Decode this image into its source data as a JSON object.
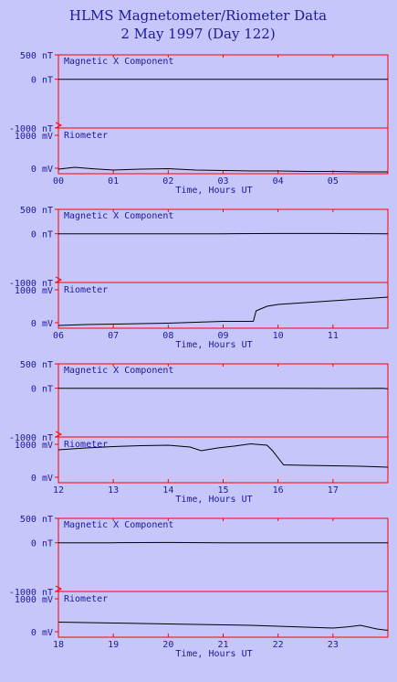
{
  "title": "HLMS Magnetometer/Riometer Data",
  "subtitle": "2 May 1997 (Day 122)",
  "colors": {
    "background": "#c6c6fb",
    "frame": "#ff0000",
    "text": "#1b1b9a",
    "trace": "#000000"
  },
  "chart_data": [
    {
      "type": "line",
      "x_label": "Time, Hours UT",
      "x_ticks": [
        "00",
        "01",
        "02",
        "03",
        "04",
        "05"
      ],
      "xlim": [
        0,
        6
      ],
      "mag": {
        "label": "Magnetic X Component",
        "unit": "nT",
        "y_tick_labels": [
          "500 nT",
          "0 nT",
          "-1000 nT"
        ],
        "ylim": [
          -1000,
          500
        ],
        "x": [
          0,
          1,
          2,
          3,
          4,
          5,
          6
        ],
        "y": [
          0,
          0,
          0,
          0,
          0,
          0,
          0
        ]
      },
      "rio": {
        "label": "Riometer",
        "unit": "mV",
        "y_tick_labels": [
          "1000 mV",
          "0 mV"
        ],
        "ylim": [
          0,
          1000
        ],
        "x": [
          0,
          0.3,
          0.6,
          1,
          1.5,
          2,
          2.5,
          3,
          3.5,
          4,
          4.5,
          5,
          5.5,
          6
        ],
        "y": [
          100,
          140,
          110,
          80,
          100,
          110,
          80,
          70,
          60,
          60,
          50,
          50,
          40,
          40
        ]
      }
    },
    {
      "type": "line",
      "x_label": "Time, Hours UT",
      "x_ticks": [
        "06",
        "07",
        "08",
        "09",
        "10",
        "11"
      ],
      "xlim": [
        6,
        12
      ],
      "mag": {
        "label": "Magnetic X Component",
        "unit": "nT",
        "y_tick_labels": [
          "500 nT",
          "0 nT",
          "-1000 nT"
        ],
        "ylim": [
          -1000,
          500
        ],
        "x": [
          6,
          7,
          8,
          9,
          10,
          11,
          12
        ],
        "y": [
          0,
          0,
          0,
          0,
          5,
          5,
          0
        ]
      },
      "rio": {
        "label": "Riometer",
        "unit": "mV",
        "y_tick_labels": [
          "1000 mV",
          "0 mV"
        ],
        "ylim": [
          0,
          1000
        ],
        "x": [
          6,
          6.5,
          7,
          7.5,
          8,
          8.5,
          9,
          9.55,
          9.6,
          9.8,
          10,
          10.5,
          11,
          11.5,
          12
        ],
        "y": [
          60,
          80,
          90,
          100,
          110,
          130,
          150,
          150,
          380,
          480,
          520,
          560,
          600,
          640,
          680
        ]
      }
    },
    {
      "type": "line",
      "x_label": "Time, Hours UT",
      "x_ticks": [
        "12",
        "13",
        "14",
        "15",
        "16",
        "17"
      ],
      "xlim": [
        12,
        18
      ],
      "mag": {
        "label": "Magnetic X Component",
        "unit": "nT",
        "y_tick_labels": [
          "500 nT",
          "0 nT",
          "-1000 nT"
        ],
        "ylim": [
          -1000,
          500
        ],
        "x": [
          12,
          13,
          14,
          15,
          16,
          17,
          17.9,
          18
        ],
        "y": [
          0,
          0,
          0,
          0,
          0,
          -5,
          0,
          -10
        ]
      },
      "rio": {
        "label": "Riometer",
        "unit": "mV",
        "y_tick_labels": [
          "1000 mV",
          "0 mV"
        ],
        "ylim": [
          0,
          1000
        ],
        "x": [
          12,
          12.5,
          13,
          13.5,
          14,
          14.4,
          14.6,
          14.9,
          15.2,
          15.5,
          15.8,
          15.9,
          16.1,
          16.5,
          17,
          17.5,
          18
        ],
        "y": [
          720,
          760,
          790,
          810,
          820,
          780,
          700,
          760,
          800,
          850,
          820,
          700,
          390,
          380,
          370,
          360,
          340
        ]
      }
    },
    {
      "type": "line",
      "x_label": "Time, Hours UT",
      "x_ticks": [
        "18",
        "19",
        "20",
        "21",
        "22",
        "23"
      ],
      "xlim": [
        18,
        24
      ],
      "mag": {
        "label": "Magnetic X Component",
        "unit": "nT",
        "y_tick_labels": [
          "500 nT",
          "0 nT",
          "-1000 nT"
        ],
        "ylim": [
          -1000,
          500
        ],
        "x": [
          18,
          19,
          20,
          21,
          22,
          23,
          24
        ],
        "y": [
          0,
          0,
          5,
          0,
          0,
          0,
          0
        ]
      },
      "rio": {
        "label": "Riometer",
        "unit": "mV",
        "y_tick_labels": [
          "1000 mV",
          "0 mV"
        ],
        "ylim": [
          0,
          1000
        ],
        "x": [
          18,
          18.5,
          19,
          19.5,
          20,
          20.5,
          21,
          21.5,
          22,
          22.5,
          23,
          23.3,
          23.5,
          23.8,
          24
        ],
        "y": [
          330,
          320,
          310,
          300,
          290,
          280,
          270,
          260,
          240,
          220,
          200,
          230,
          260,
          180,
          150
        ]
      }
    }
  ]
}
